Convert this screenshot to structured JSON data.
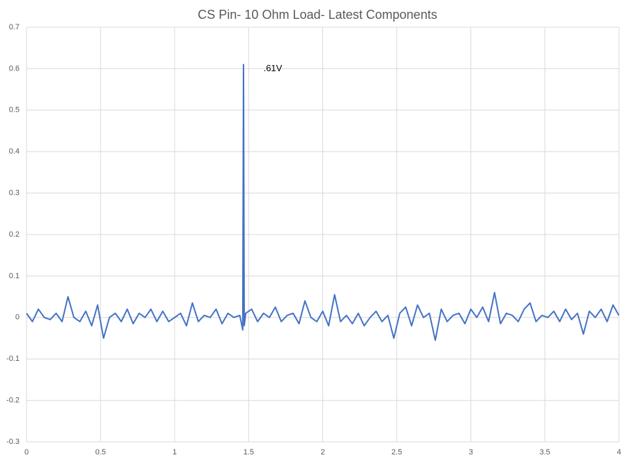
{
  "chart_data": {
    "type": "line",
    "title": "CS Pin- 10 Ohm Load- Latest Components",
    "x": [
      0,
      0.04,
      0.08,
      0.12,
      0.16,
      0.2,
      0.24,
      0.28,
      0.32,
      0.36,
      0.4,
      0.44,
      0.48,
      0.52,
      0.56,
      0.6,
      0.64,
      0.68,
      0.72,
      0.76,
      0.8,
      0.84,
      0.88,
      0.92,
      0.96,
      1,
      1.04,
      1.08,
      1.12,
      1.16,
      1.2,
      1.24,
      1.28,
      1.32,
      1.36,
      1.4,
      1.44,
      1.46,
      1.465,
      1.47,
      1.48,
      1.52,
      1.56,
      1.6,
      1.64,
      1.68,
      1.72,
      1.76,
      1.8,
      1.84,
      1.88,
      1.92,
      1.96,
      2,
      2.04,
      2.08,
      2.12,
      2.16,
      2.2,
      2.24,
      2.28,
      2.32,
      2.36,
      2.4,
      2.44,
      2.48,
      2.52,
      2.56,
      2.6,
      2.64,
      2.68,
      2.72,
      2.76,
      2.8,
      2.84,
      2.88,
      2.92,
      2.96,
      3,
      3.04,
      3.08,
      3.12,
      3.16,
      3.2,
      3.24,
      3.28,
      3.32,
      3.36,
      3.4,
      3.44,
      3.48,
      3.52,
      3.56,
      3.6,
      3.64,
      3.68,
      3.72,
      3.76,
      3.8,
      3.84,
      3.88,
      3.92,
      3.96,
      4
    ],
    "series": [
      {
        "name": "CS Pin",
        "color": "#4472c4",
        "values": [
          0.01,
          -0.01,
          0.02,
          0.0,
          -0.005,
          0.01,
          -0.01,
          0.05,
          0.0,
          -0.01,
          0.015,
          -0.02,
          0.03,
          -0.05,
          0.0,
          0.01,
          -0.01,
          0.02,
          -0.015,
          0.01,
          0.0,
          0.02,
          -0.01,
          0.015,
          -0.01,
          0.0,
          0.01,
          -0.02,
          0.035,
          -0.01,
          0.005,
          0.0,
          0.02,
          -0.015,
          0.01,
          0.0,
          0.005,
          -0.03,
          0.61,
          -0.02,
          0.01,
          0.02,
          -0.01,
          0.01,
          0.0,
          0.025,
          -0.01,
          0.005,
          0.01,
          -0.015,
          0.04,
          0.0,
          -0.01,
          0.015,
          -0.02,
          0.055,
          -0.01,
          0.005,
          -0.015,
          0.01,
          -0.02,
          0.0,
          0.015,
          -0.01,
          0.005,
          -0.05,
          0.01,
          0.025,
          -0.02,
          0.03,
          0.0,
          0.01,
          -0.055,
          0.02,
          -0.01,
          0.005,
          0.01,
          -0.015,
          0.02,
          0.0,
          0.025,
          -0.01,
          0.06,
          -0.015,
          0.01,
          0.005,
          -0.01,
          0.02,
          0.035,
          -0.01,
          0.005,
          0.0,
          0.015,
          -0.01,
          0.02,
          -0.005,
          0.01,
          -0.04,
          0.015,
          0.0,
          0.02,
          -0.01,
          0.03,
          0.005
        ]
      }
    ],
    "annotations": [
      {
        "text": ".61V",
        "x": 1.6,
        "y": 0.6
      }
    ],
    "xlim": [
      0,
      4
    ],
    "xticks": [
      0,
      0.5,
      1,
      1.5,
      2,
      2.5,
      3,
      3.5,
      4
    ],
    "ylim": [
      -0.3,
      0.7
    ],
    "yticks": [
      -0.3,
      -0.2,
      -0.1,
      0,
      0.1,
      0.2,
      0.3,
      0.4,
      0.5,
      0.6,
      0.7
    ],
    "grid": true
  }
}
